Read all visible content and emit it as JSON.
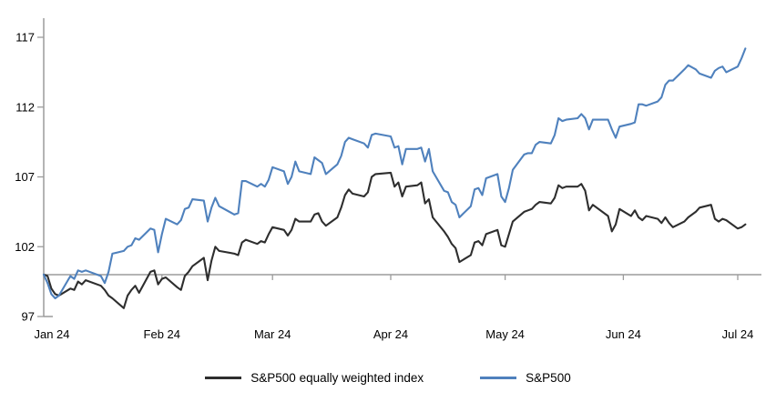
{
  "chart_data": {
    "type": "line",
    "title": "",
    "xlabel": "",
    "ylabel": "",
    "ylim": [
      97,
      117
    ],
    "y_ticks": [
      97,
      102,
      107,
      112,
      117
    ],
    "x_tick_labels": [
      "Jan 24",
      "Feb 24",
      "Mar 24",
      "Apr 24",
      "May 24",
      "Jun 24",
      "Jul 24"
    ],
    "x_tick_day_offsets": [
      0,
      31,
      60,
      91,
      121,
      152,
      182
    ],
    "baseline_value": 100,
    "grid": "off",
    "legend_position": "bottom-center",
    "axis_color": "#9b9b9b",
    "background_color": "#ffffff",
    "x_day_offsets": [
      0,
      1,
      2,
      3,
      4,
      7,
      8,
      9,
      10,
      11,
      15,
      16,
      17,
      18,
      21,
      22,
      23,
      24,
      25,
      28,
      29,
      30,
      31,
      32,
      35,
      36,
      37,
      38,
      39,
      42,
      43,
      44,
      45,
      46,
      50,
      51,
      52,
      53,
      56,
      57,
      58,
      59,
      60,
      63,
      64,
      65,
      66,
      67,
      70,
      71,
      72,
      73,
      74,
      77,
      78,
      79,
      80,
      81,
      84,
      85,
      86,
      87,
      91,
      92,
      93,
      94,
      95,
      98,
      99,
      100,
      101,
      102,
      105,
      106,
      107,
      108,
      109,
      112,
      113,
      114,
      115,
      116,
      119,
      120,
      121,
      122,
      123,
      126,
      127,
      128,
      129,
      130,
      133,
      134,
      135,
      136,
      137,
      140,
      141,
      142,
      143,
      144,
      148,
      149,
      150,
      151,
      154,
      155,
      156,
      157,
      158,
      161,
      162,
      163,
      164,
      165,
      168,
      169,
      171,
      172,
      175,
      176,
      177,
      178,
      179,
      182,
      183,
      184
    ],
    "series": [
      {
        "name": "S&P500 equally weighted index",
        "color": "#2e2e2e",
        "values": [
          100.0,
          99.9,
          99.0,
          98.6,
          98.5,
          99.0,
          98.9,
          99.5,
          99.3,
          99.6,
          99.2,
          98.9,
          98.5,
          98.3,
          97.6,
          98.5,
          98.9,
          99.2,
          98.7,
          100.2,
          100.3,
          99.3,
          99.7,
          99.8,
          99.1,
          98.9,
          99.9,
          100.2,
          100.6,
          101.2,
          99.6,
          101.0,
          102.0,
          101.7,
          101.5,
          101.4,
          102.3,
          102.5,
          102.2,
          102.4,
          102.3,
          102.9,
          103.4,
          103.2,
          102.8,
          103.2,
          104.0,
          103.8,
          103.8,
          104.3,
          104.4,
          103.8,
          103.5,
          104.1,
          104.8,
          105.7,
          106.1,
          105.8,
          105.6,
          105.9,
          107.0,
          107.2,
          107.3,
          106.3,
          106.6,
          105.6,
          106.3,
          106.4,
          106.6,
          105.1,
          105.4,
          104.1,
          103.1,
          102.7,
          102.2,
          101.9,
          100.9,
          101.4,
          102.3,
          102.4,
          102.1,
          102.9,
          103.2,
          102.1,
          102.0,
          102.9,
          103.8,
          104.5,
          104.6,
          104.7,
          105.0,
          105.2,
          105.1,
          105.5,
          106.4,
          106.2,
          106.3,
          106.3,
          106.5,
          106.0,
          104.6,
          105.0,
          104.2,
          103.1,
          103.6,
          104.7,
          104.2,
          104.6,
          104.1,
          103.9,
          104.2,
          104.0,
          103.7,
          104.1,
          103.7,
          103.4,
          103.8,
          104.1,
          104.5,
          104.8,
          105.0,
          104.0,
          103.8,
          104.0,
          103.9,
          103.3,
          103.4,
          103.6
        ]
      },
      {
        "name": "S&P500",
        "color": "#4f81bd",
        "values": [
          100.0,
          99.4,
          98.6,
          98.3,
          98.5,
          99.9,
          99.7,
          100.3,
          100.2,
          100.3,
          99.9,
          99.4,
          100.2,
          101.5,
          101.7,
          102.0,
          102.1,
          102.6,
          102.5,
          103.3,
          103.2,
          101.6,
          102.9,
          104.0,
          103.6,
          103.9,
          104.7,
          104.8,
          105.4,
          105.3,
          103.8,
          104.8,
          105.5,
          104.9,
          104.3,
          104.4,
          106.7,
          106.7,
          106.3,
          106.5,
          106.3,
          106.8,
          107.7,
          107.4,
          106.5,
          107.0,
          108.1,
          107.4,
          107.2,
          108.4,
          108.2,
          108.0,
          107.2,
          107.9,
          108.5,
          109.5,
          109.8,
          109.7,
          109.4,
          109.1,
          110.0,
          110.1,
          109.9,
          109.1,
          109.2,
          107.9,
          109.0,
          109.0,
          109.1,
          108.1,
          109.0,
          107.4,
          106.0,
          105.9,
          105.2,
          105.0,
          104.1,
          104.9,
          106.1,
          106.2,
          105.7,
          106.9,
          107.2,
          105.6,
          105.2,
          106.2,
          107.5,
          108.6,
          108.7,
          108.7,
          109.3,
          109.5,
          109.4,
          110.0,
          111.2,
          111.0,
          111.1,
          111.2,
          111.5,
          111.2,
          110.4,
          111.1,
          111.1,
          110.4,
          109.8,
          110.6,
          110.8,
          110.9,
          112.2,
          112.2,
          112.1,
          112.4,
          112.7,
          113.6,
          113.9,
          113.9,
          114.7,
          115.0,
          114.7,
          114.4,
          114.1,
          114.6,
          114.8,
          114.9,
          114.5,
          114.9,
          115.5,
          116.2
        ]
      }
    ]
  }
}
